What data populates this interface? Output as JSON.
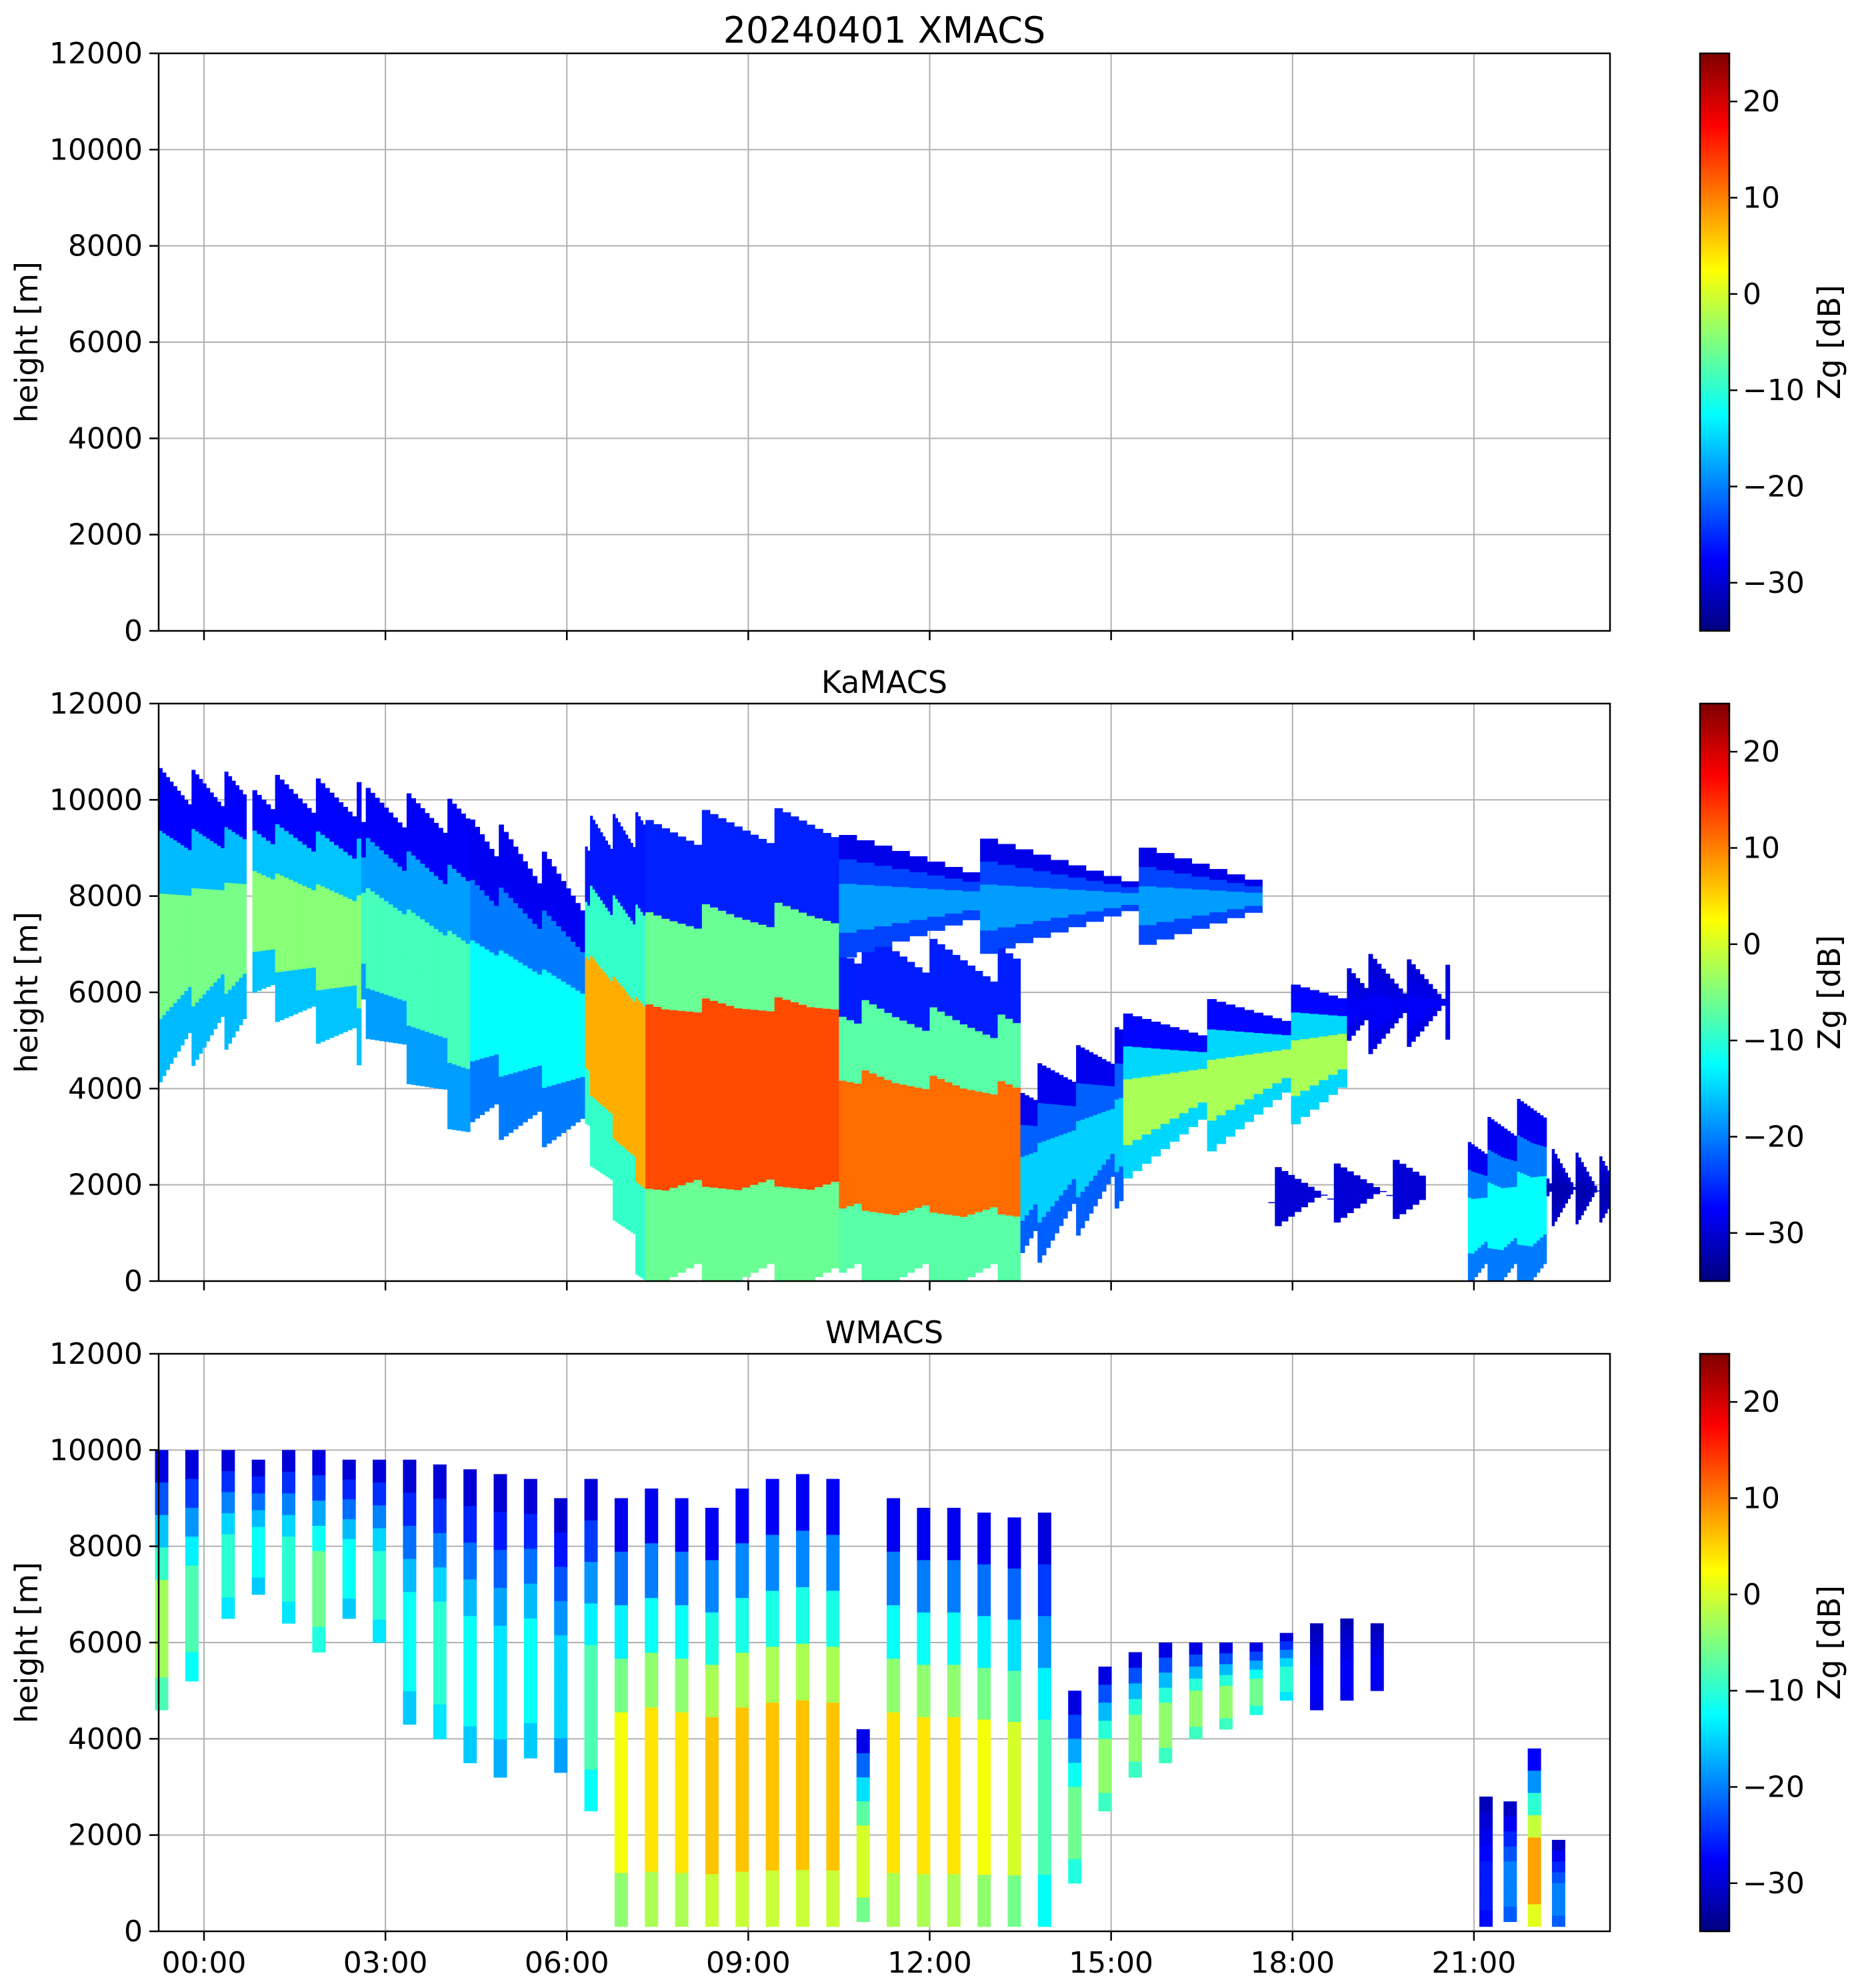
{
  "chart_data": [
    {
      "type": "heatmap",
      "title": "20240401 XMACS",
      "ylabel": "height [m]",
      "ylim": [
        0,
        12000
      ],
      "yticks": [
        "0",
        "2000",
        "4000",
        "6000",
        "8000",
        "10000",
        "12000"
      ],
      "xlim": [
        "23:15",
        "23:15+1d"
      ],
      "xticks_shown": false,
      "grid": true,
      "colorbar": {
        "label": "Zg [dB]",
        "range": [
          -35,
          25
        ],
        "ticks": [
          "−30",
          "−20",
          "−10",
          "0",
          "10",
          "20"
        ],
        "colormap": "jet"
      },
      "echoes": []
    },
    {
      "type": "heatmap",
      "title": "KaMACS",
      "ylabel": "height [m]",
      "ylim": [
        0,
        12000
      ],
      "yticks": [
        "0",
        "2000",
        "4000",
        "6000",
        "8000",
        "10000",
        "12000"
      ],
      "xticks_shown": false,
      "grid": true,
      "colorbar": {
        "label": "Zg [dB]",
        "range": [
          -35,
          25
        ],
        "ticks": [
          "−30",
          "−20",
          "−10",
          "0",
          "10",
          "20"
        ],
        "colormap": "jet"
      },
      "echoes": [
        {
          "t": [
            -0.75,
            0.7
          ],
          "base_m": [
            4500,
            5400
          ],
          "top_m": [
            10300,
            10200
          ],
          "zg_core_dB": -5
        },
        {
          "t": [
            0.8,
            2.6
          ],
          "base_m": [
            6000,
            4800
          ],
          "top_m": [
            10200,
            10000
          ],
          "zg_core_dB": -4
        },
        {
          "t": [
            2.6,
            4.4
          ],
          "base_m": [
            5500,
            3000
          ],
          "top_m": [
            9900,
            9600
          ],
          "zg_core_dB": -8
        },
        {
          "t": [
            4.4,
            6.3
          ],
          "base_m": [
            3400,
            3000
          ],
          "top_m": [
            9500,
            8000
          ],
          "zg_core_dB": -12
        },
        {
          "t": [
            6.3,
            7.3
          ],
          "base_m": [
            3000,
            0
          ],
          "top_m": [
            9300,
            9400
          ],
          "zg_core_dB": 8
        },
        {
          "t": [
            7.3,
            10.5
          ],
          "base_m": [
            0,
            0
          ],
          "top_m": [
            9400,
            9500
          ],
          "zg_core_dB": 14
        },
        {
          "t": [
            10.5,
            13.5
          ],
          "base_m": [
            0,
            0
          ],
          "top_m": [
            7000,
            6500
          ],
          "zg_core_dB": 12
        },
        {
          "t": [
            10.5,
            17.5
          ],
          "base_m": [
            7000,
            7500
          ],
          "top_m": [
            9000,
            8500
          ],
          "zg_core_dB": -18
        },
        {
          "t": [
            13.5,
            15.2
          ],
          "base_m": [
            500,
            2000
          ],
          "top_m": [
            4000,
            5000
          ],
          "zg_core_dB": -15
        },
        {
          "t": [
            15.2,
            18.9
          ],
          "base_m": [
            2500,
            4000
          ],
          "top_m": [
            5200,
            6000
          ],
          "zg_core_dB": -2
        },
        {
          "t": [
            18.9,
            20.6
          ],
          "base_m": [
            5000,
            5400
          ],
          "top_m": [
            6500,
            6200
          ],
          "zg_core_dB": -28
        },
        {
          "t": [
            17.6,
            20.2
          ],
          "base_m": [
            1500,
            1700
          ],
          "top_m": [
            2000,
            2200
          ],
          "zg_core_dB": -30
        },
        {
          "t": [
            20.9,
            22.2
          ],
          "base_m": [
            0,
            0
          ],
          "top_m": [
            2800,
            3800
          ],
          "zg_core_dB": -12
        },
        {
          "t": [
            22.2,
            23.25
          ],
          "base_m": [
            1500,
            1600
          ],
          "top_m": [
            2400,
            2200
          ],
          "zg_core_dB": -32
        }
      ]
    },
    {
      "type": "heatmap",
      "title": "WMACS",
      "ylabel": "height [m]",
      "ylim": [
        0,
        12000
      ],
      "yticks": [
        "0",
        "2000",
        "4000",
        "6000",
        "8000",
        "10000",
        "12000"
      ],
      "xticks": [
        "00:00",
        "03:00",
        "06:00",
        "09:00",
        "12:00",
        "15:00",
        "18:00",
        "21:00"
      ],
      "grid": true,
      "colorbar": {
        "label": "Zg [dB]",
        "range": [
          -35,
          25
        ],
        "ticks": [
          "−30",
          "−20",
          "−10",
          "0",
          "10",
          "20"
        ],
        "colormap": "jet"
      },
      "echoes_note_visible": false,
      "scan_columns": [
        {
          "t": -0.7,
          "base_m": 4600,
          "top_m": 10000,
          "zg_core_dB": -3
        },
        {
          "t": -0.2,
          "base_m": 5200,
          "top_m": 10000,
          "zg_core_dB": -8
        },
        {
          "t": 0.4,
          "base_m": 6500,
          "top_m": 10000,
          "zg_core_dB": -10
        },
        {
          "t": 0.9,
          "base_m": 7000,
          "top_m": 9800,
          "zg_core_dB": -12
        },
        {
          "t": 1.4,
          "base_m": 6400,
          "top_m": 10000,
          "zg_core_dB": -10
        },
        {
          "t": 1.9,
          "base_m": 5800,
          "top_m": 10000,
          "zg_core_dB": -6
        },
        {
          "t": 2.4,
          "base_m": 6500,
          "top_m": 9800,
          "zg_core_dB": -12
        },
        {
          "t": 2.9,
          "base_m": 6000,
          "top_m": 9800,
          "zg_core_dB": -10
        },
        {
          "t": 3.4,
          "base_m": 4300,
          "top_m": 9800,
          "zg_core_dB": -12
        },
        {
          "t": 3.9,
          "base_m": 4000,
          "top_m": 9700,
          "zg_core_dB": -10
        },
        {
          "t": 4.4,
          "base_m": 3500,
          "top_m": 9600,
          "zg_core_dB": -12
        },
        {
          "t": 4.9,
          "base_m": 3200,
          "top_m": 9500,
          "zg_core_dB": -14
        },
        {
          "t": 5.4,
          "base_m": 3600,
          "top_m": 9400,
          "zg_core_dB": -12
        },
        {
          "t": 5.9,
          "base_m": 3300,
          "top_m": 9000,
          "zg_core_dB": -15
        },
        {
          "t": 6.4,
          "base_m": 2500,
          "top_m": 9400,
          "zg_core_dB": -8
        },
        {
          "t": 6.9,
          "base_m": 100,
          "top_m": 9000,
          "zg_core_dB": 2
        },
        {
          "t": 7.4,
          "base_m": 100,
          "top_m": 9200,
          "zg_core_dB": 4
        },
        {
          "t": 7.9,
          "base_m": 100,
          "top_m": 9000,
          "zg_core_dB": 4
        },
        {
          "t": 8.4,
          "base_m": 100,
          "top_m": 8800,
          "zg_core_dB": 6
        },
        {
          "t": 8.9,
          "base_m": 100,
          "top_m": 9200,
          "zg_core_dB": 6
        },
        {
          "t": 9.4,
          "base_m": 100,
          "top_m": 9400,
          "zg_core_dB": 6
        },
        {
          "t": 9.9,
          "base_m": 100,
          "top_m": 9500,
          "zg_core_dB": 6
        },
        {
          "t": 10.4,
          "base_m": 100,
          "top_m": 9400,
          "zg_core_dB": 6
        },
        {
          "t": 10.9,
          "base_m": 200,
          "top_m": 4200,
          "zg_core_dB": 0
        },
        {
          "t": 11.4,
          "base_m": 100,
          "top_m": 9000,
          "zg_core_dB": 4
        },
        {
          "t": 11.9,
          "base_m": 100,
          "top_m": 8800,
          "zg_core_dB": 4
        },
        {
          "t": 12.4,
          "base_m": 100,
          "top_m": 8800,
          "zg_core_dB": 4
        },
        {
          "t": 12.9,
          "base_m": 100,
          "top_m": 8700,
          "zg_core_dB": 2
        },
        {
          "t": 13.4,
          "base_m": 100,
          "top_m": 8600,
          "zg_core_dB": 0
        },
        {
          "t": 13.9,
          "base_m": 100,
          "top_m": 8700,
          "zg_core_dB": -8
        },
        {
          "t": 14.4,
          "base_m": 1000,
          "top_m": 5000,
          "zg_core_dB": -6
        },
        {
          "t": 14.9,
          "base_m": 2500,
          "top_m": 5500,
          "zg_core_dB": -4
        },
        {
          "t": 15.4,
          "base_m": 3200,
          "top_m": 5800,
          "zg_core_dB": -4
        },
        {
          "t": 15.9,
          "base_m": 3500,
          "top_m": 6000,
          "zg_core_dB": -4
        },
        {
          "t": 16.4,
          "base_m": 4000,
          "top_m": 6000,
          "zg_core_dB": -4
        },
        {
          "t": 16.9,
          "base_m": 4200,
          "top_m": 6000,
          "zg_core_dB": -4
        },
        {
          "t": 17.4,
          "base_m": 4500,
          "top_m": 6000,
          "zg_core_dB": -6
        },
        {
          "t": 17.9,
          "base_m": 4800,
          "top_m": 6200,
          "zg_core_dB": -10
        },
        {
          "t": 18.4,
          "base_m": 4600,
          "top_m": 6400,
          "zg_core_dB": -28
        },
        {
          "t": 18.9,
          "base_m": 4800,
          "top_m": 6500,
          "zg_core_dB": -28
        },
        {
          "t": 19.4,
          "base_m": 5000,
          "top_m": 6400,
          "zg_core_dB": -28
        },
        {
          "t": 21.2,
          "base_m": 100,
          "top_m": 2800,
          "zg_core_dB": -26
        },
        {
          "t": 21.6,
          "base_m": 200,
          "top_m": 2700,
          "zg_core_dB": -20
        },
        {
          "t": 22.0,
          "base_m": 100,
          "top_m": 3800,
          "zg_core_dB": 8
        },
        {
          "t": 22.4,
          "base_m": 100,
          "top_m": 1900,
          "zg_core_dB": -20
        }
      ]
    }
  ]
}
